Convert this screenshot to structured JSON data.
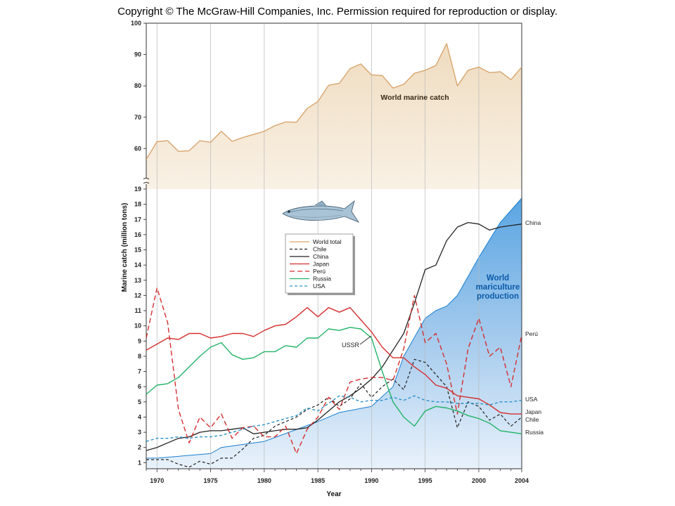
{
  "header": {
    "copyright": "Copyright © The McGraw-Hill Companies, Inc. Permission required for reproduction or display."
  },
  "colors": {
    "world_fill": "#f3e3cb",
    "world_line": "#d9a56d",
    "chile": "#222222",
    "china": "#222222",
    "japan": "#d42e2e",
    "peru": "#d42e2e",
    "russia": "#22b366",
    "usa": "#2a92c9",
    "mariculture": "#6aaee3",
    "mariculture_edge": "#1a7fd0"
  },
  "icons": {
    "fish": "fish-illustration"
  },
  "chart_data": {
    "type": "line",
    "xlabel": "Year",
    "ylabel": "Marine catch (million tons)",
    "xlim": [
      1969,
      2004
    ],
    "x_ticks": [
      1970,
      1975,
      1980,
      1985,
      1990,
      1995,
      2000,
      2004
    ],
    "upper_panel": {
      "ylim": [
        52,
        100
      ],
      "y_ticks": [
        60,
        70,
        80,
        90,
        100
      ]
    },
    "lower_panel": {
      "ylim": [
        0.6,
        19
      ],
      "y_ticks": [
        1,
        2,
        3,
        4,
        5,
        6,
        7,
        8,
        9,
        10,
        11,
        12,
        13,
        14,
        15,
        16,
        17,
        18,
        19
      ]
    },
    "annotations": {
      "world_marine_catch": "World marine catch",
      "mariculture_line1": "World",
      "mariculture_line2": "mariculture",
      "mariculture_line3": "production",
      "ussr": "USSR"
    },
    "legend": [
      "World total",
      "Chile",
      "China",
      "Japan",
      "Perú",
      "Russia",
      "USA"
    ],
    "end_labels": {
      "china": "China",
      "peru": "Perú",
      "usa": "USA",
      "japan": "Japan",
      "chile": "Chile",
      "russia": "Russia"
    },
    "series": [
      {
        "name": "World total",
        "x": [
          1969,
          1970,
          1971,
          1972,
          1973,
          1974,
          1975,
          1976,
          1977,
          1978,
          1979,
          1980,
          1981,
          1982,
          1983,
          1984,
          1985,
          1986,
          1987,
          1988,
          1989,
          1990,
          1991,
          1992,
          1993,
          1994,
          1995,
          1996,
          1997,
          1998,
          1999,
          2000,
          2001,
          2002,
          2003,
          2004
        ],
        "values": [
          56.5,
          62.2,
          62.5,
          59.1,
          59.3,
          62.5,
          62.0,
          65.5,
          62.3,
          63.5,
          64.5,
          65.5,
          67.3,
          68.5,
          68.4,
          72.8,
          75.0,
          80.2,
          80.8,
          85.5,
          87.0,
          83.5,
          83.3,
          79.3,
          80.5,
          84.0,
          85.0,
          86.5,
          93.5,
          80.0,
          85.0,
          86.0,
          84.2,
          84.5,
          82.0,
          86.0
        ]
      },
      {
        "name": "Chile",
        "x": [
          1969,
          1970,
          1971,
          1972,
          1973,
          1974,
          1975,
          1976,
          1977,
          1978,
          1979,
          1980,
          1981,
          1982,
          1983,
          1984,
          1985,
          1986,
          1987,
          1988,
          1989,
          1990,
          1991,
          1992,
          1993,
          1994,
          1995,
          1996,
          1997,
          1998,
          1999,
          2000,
          2001,
          2002,
          2003,
          2004
        ],
        "values": [
          1.2,
          1.2,
          1.2,
          0.9,
          0.7,
          1.1,
          0.9,
          1.3,
          1.3,
          1.9,
          2.6,
          2.8,
          3.4,
          3.7,
          4.0,
          4.5,
          4.8,
          5.3,
          4.7,
          5.2,
          6.2,
          5.3,
          6.0,
          6.5,
          5.8,
          7.8,
          7.6,
          6.8,
          6.0,
          3.3,
          5.0,
          4.7,
          3.8,
          4.2,
          3.4,
          4.0
        ]
      },
      {
        "name": "China",
        "x": [
          1969,
          1970,
          1971,
          1972,
          1973,
          1974,
          1975,
          1976,
          1977,
          1978,
          1979,
          1980,
          1981,
          1982,
          1983,
          1984,
          1985,
          1986,
          1987,
          1988,
          1989,
          1990,
          1991,
          1992,
          1993,
          1994,
          1995,
          1996,
          1997,
          1998,
          1999,
          2000,
          2001,
          2002,
          2003,
          2004
        ],
        "values": [
          1.8,
          2.0,
          2.3,
          2.6,
          2.7,
          3.0,
          3.1,
          3.1,
          3.2,
          3.3,
          2.9,
          3.0,
          3.1,
          3.2,
          3.2,
          3.3,
          3.8,
          4.4,
          5.0,
          5.4,
          5.9,
          6.5,
          7.3,
          8.4,
          9.5,
          11.5,
          13.7,
          14.0,
          15.6,
          16.5,
          16.8,
          16.7,
          16.3,
          16.5,
          16.6,
          16.7
        ]
      },
      {
        "name": "Japan",
        "x": [
          1969,
          1970,
          1971,
          1972,
          1973,
          1974,
          1975,
          1976,
          1977,
          1978,
          1979,
          1980,
          1981,
          1982,
          1983,
          1984,
          1985,
          1986,
          1987,
          1988,
          1989,
          1990,
          1991,
          1992,
          1993,
          1994,
          1995,
          1996,
          1997,
          1998,
          1999,
          2000,
          2001,
          2002,
          2003,
          2004
        ],
        "values": [
          8.4,
          8.8,
          9.2,
          9.1,
          9.5,
          9.5,
          9.2,
          9.3,
          9.5,
          9.5,
          9.3,
          9.7,
          10.0,
          10.1,
          10.6,
          11.2,
          10.6,
          11.2,
          10.9,
          11.2,
          10.4,
          9.6,
          8.6,
          7.9,
          7.9,
          7.3,
          6.8,
          6.1,
          5.9,
          5.4,
          5.3,
          5.2,
          4.8,
          4.3,
          4.2,
          4.2
        ]
      },
      {
        "name": "Perú",
        "x": [
          1969,
          1970,
          1971,
          1972,
          1973,
          1974,
          1975,
          1976,
          1977,
          1978,
          1979,
          1980,
          1981,
          1982,
          1983,
          1984,
          1985,
          1986,
          1987,
          1988,
          1989,
          1990,
          1991,
          1992,
          1993,
          1994,
          1995,
          1996,
          1997,
          1998,
          1999,
          2000,
          2001,
          2002,
          2003,
          2004
        ],
        "values": [
          9.2,
          12.5,
          10.2,
          4.5,
          2.3,
          4.0,
          3.3,
          4.2,
          2.6,
          3.3,
          3.4,
          2.7,
          2.7,
          3.4,
          1.6,
          3.2,
          4.0,
          5.3,
          4.5,
          6.3,
          6.5,
          6.6,
          6.6,
          6.4,
          8.5,
          12.0,
          8.9,
          9.5,
          7.5,
          4.2,
          8.5,
          10.5,
          8.0,
          8.6,
          6.0,
          9.4
        ]
      },
      {
        "name": "Russia",
        "x": [
          1969,
          1970,
          1971,
          1972,
          1973,
          1974,
          1975,
          1976,
          1977,
          1978,
          1979,
          1980,
          1981,
          1982,
          1983,
          1984,
          1985,
          1986,
          1987,
          1988,
          1989,
          1990,
          1991,
          1992,
          1993,
          1994,
          1995,
          1996,
          1997,
          1998,
          1999,
          2000,
          2001,
          2002,
          2003,
          2004
        ],
        "values": [
          5.5,
          6.1,
          6.2,
          6.6,
          7.3,
          8.0,
          8.6,
          8.9,
          8.1,
          7.8,
          7.9,
          8.3,
          8.3,
          8.7,
          8.6,
          9.2,
          9.2,
          9.8,
          9.7,
          9.9,
          9.8,
          9.2,
          7.0,
          5.0,
          4.0,
          3.4,
          4.4,
          4.7,
          4.6,
          4.4,
          4.1,
          3.9,
          3.6,
          3.1,
          3.0,
          2.9
        ]
      },
      {
        "name": "USA",
        "x": [
          1969,
          1970,
          1971,
          1972,
          1973,
          1974,
          1975,
          1976,
          1977,
          1978,
          1979,
          1980,
          1981,
          1982,
          1983,
          1984,
          1985,
          1986,
          1987,
          1988,
          1989,
          1990,
          1991,
          1992,
          1993,
          1994,
          1995,
          1996,
          1997,
          1998,
          1999,
          2000,
          2001,
          2002,
          2003,
          2004
        ],
        "values": [
          2.4,
          2.6,
          2.6,
          2.7,
          2.6,
          2.7,
          2.7,
          2.8,
          3.0,
          3.2,
          3.4,
          3.5,
          3.7,
          3.9,
          4.1,
          4.6,
          4.4,
          4.9,
          5.4,
          5.3,
          5.0,
          5.1,
          5.1,
          5.3,
          5.1,
          5.4,
          5.1,
          5.0,
          5.0,
          4.9,
          4.9,
          4.9,
          4.8,
          5.0,
          5.0,
          5.1
        ]
      },
      {
        "name": "World mariculture production",
        "x": [
          1969,
          1970,
          1975,
          1976,
          1980,
          1985,
          1987,
          1990,
          1992,
          1993,
          1995,
          1996,
          1997,
          1998,
          2000,
          2002,
          2004
        ],
        "values": [
          1.3,
          1.3,
          1.6,
          2.0,
          2.4,
          3.7,
          4.3,
          4.7,
          6.0,
          8.0,
          10.5,
          11.0,
          11.3,
          12.0,
          14.5,
          16.8,
          18.4
        ]
      }
    ]
  }
}
